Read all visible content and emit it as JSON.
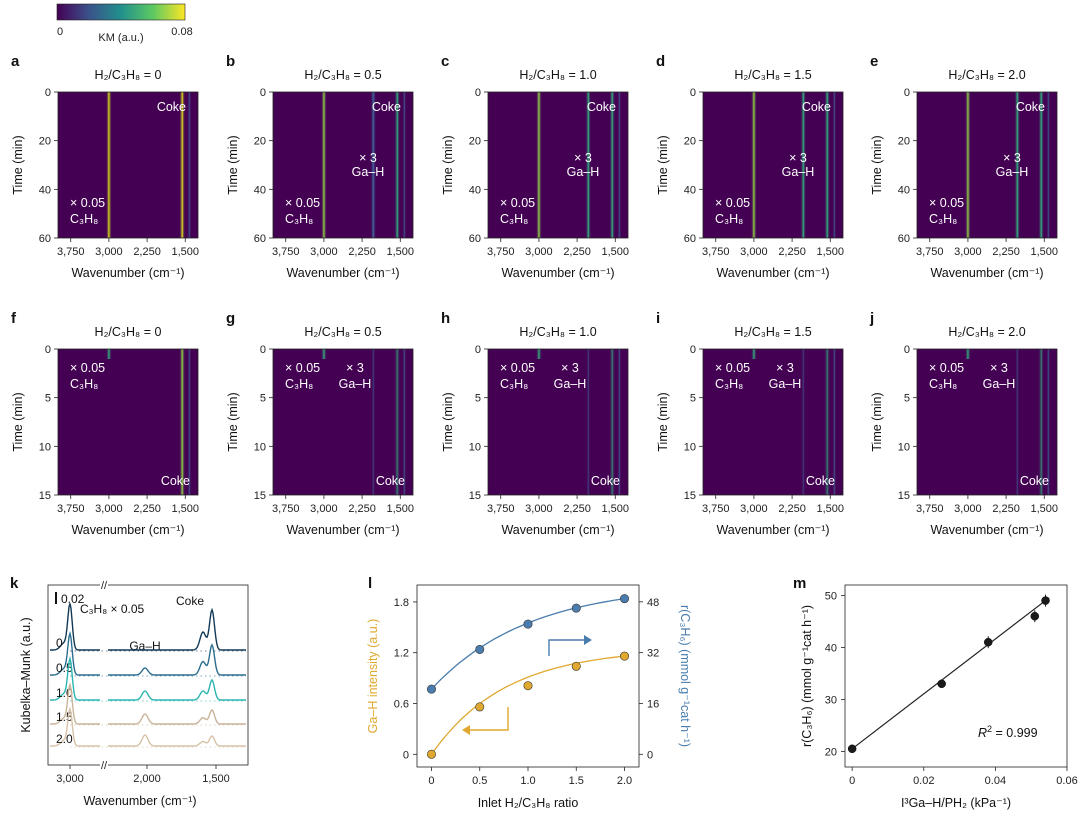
{
  "colorbar": {
    "label": "KM (a.u.)",
    "min": "0",
    "max": "0.08"
  },
  "rows": [
    {
      "time_max": 60,
      "time_ticks": [
        "0",
        "20",
        "40",
        "60"
      ],
      "panels": [
        {
          "letter": "a",
          "ratio": "0",
          "labels": {
            "coke": "Coke",
            "c3h8_mult": "× 0.05"
          }
        },
        {
          "letter": "b",
          "ratio": "0.5",
          "labels": {
            "coke": "Coke",
            "gah_mult": "× 3",
            "gah": "Ga–H",
            "c3h8_mult": "× 0.05"
          }
        },
        {
          "letter": "c",
          "ratio": "1.0",
          "labels": {
            "coke": "Coke",
            "gah_mult": "× 3",
            "gah": "Ga–H",
            "c3h8_mult": "× 0.05"
          }
        },
        {
          "letter": "d",
          "ratio": "1.5",
          "labels": {
            "coke": "Coke",
            "gah_mult": "× 3",
            "gah": "Ga–H",
            "c3h8_mult": "× 0.05"
          }
        },
        {
          "letter": "e",
          "ratio": "2.0",
          "labels": {
            "coke": "Coke",
            "gah_mult": "× 3",
            "gah": "Ga–H",
            "c3h8_mult": "× 0.05"
          }
        }
      ]
    },
    {
      "time_max": 15,
      "time_ticks": [
        "0",
        "5",
        "10",
        "15"
      ],
      "panels": [
        {
          "letter": "f",
          "ratio": "0",
          "labels": {
            "coke": "Coke",
            "c3h8_mult": "× 0.05"
          }
        },
        {
          "letter": "g",
          "ratio": "0.5",
          "labels": {
            "coke": "Coke",
            "gah_mult": "× 3",
            "gah": "Ga–H",
            "c3h8_mult": "× 0.05"
          }
        },
        {
          "letter": "h",
          "ratio": "1.0",
          "labels": {
            "coke": "Coke",
            "gah_mult": "× 3",
            "gah": "Ga–H",
            "c3h8_mult": "× 0.05"
          }
        },
        {
          "letter": "i",
          "ratio": "1.5",
          "labels": {
            "coke": "Coke",
            "gah_mult": "× 3",
            "gah": "Ga–H",
            "c3h8_mult": "× 0.05"
          }
        },
        {
          "letter": "j",
          "ratio": "2.0",
          "labels": {
            "coke": "Coke",
            "gah_mult": "× 3",
            "gah": "Ga–H",
            "c3h8_mult": "× 0.05"
          }
        }
      ]
    }
  ],
  "heatmap_common": {
    "title_prefix": "H₂/C₃H₈ = ",
    "xlabel": "Wavenumber (cm⁻¹)",
    "ylabel": "Time (min)",
    "x_ticks": [
      "3,750",
      "3,000",
      "2,250",
      "1,500"
    ]
  },
  "chart_data": [
    {
      "type": "heatmap",
      "panels": "a–j",
      "x_range_cm-1": [
        4000,
        1250
      ],
      "bands_cm-1": {
        "C3H8": 3000,
        "Ga-H": 2030,
        "coke": 1540
      },
      "color_range": [
        0,
        0.08
      ]
    },
    {
      "type": "line",
      "panel": "k",
      "letter": "k",
      "xlabel": "Wavenumber (cm⁻¹)",
      "ylabel": "Kubelka–Munk (a.u.)",
      "x_ticks": [
        "3,000",
        "2,000",
        "1,500"
      ],
      "scale_bar": "0.02",
      "annotations": {
        "c3h8": "C₃H₈ × 0.05",
        "coke": "Coke",
        "gah": "Ga–H"
      },
      "series": [
        {
          "name": "0",
          "color": "#123a57"
        },
        {
          "name": "0.5",
          "color": "#2b6e8f"
        },
        {
          "name": "1.0",
          "color": "#2bb5b0"
        },
        {
          "name": "1.5",
          "color": "#c9b49a"
        },
        {
          "name": "2.0",
          "color": "#d7c2a8"
        }
      ]
    },
    {
      "type": "scatter",
      "panel": "l",
      "letter": "l",
      "xlabel": "Inlet H₂/C₃H₈ ratio",
      "ylabel_left": "Ga–H intensity (a.u.)",
      "ylabel_right": "r(C₃H₆) (mmol g⁻¹cat h⁻¹)",
      "x": [
        0,
        0.5,
        1.0,
        1.5,
        2.0
      ],
      "x_ticks": [
        "0",
        "0.5",
        "1.0",
        "1.5",
        "2.0"
      ],
      "y_left_ticks": [
        "0",
        "0.6",
        "1.2",
        "1.8"
      ],
      "y_right_ticks": [
        "0",
        "16",
        "32",
        "48"
      ],
      "series": [
        {
          "name": "Ga–H intensity",
          "axis": "left",
          "ylim": [
            -0.15,
            2.0
          ],
          "values": [
            0,
            0.56,
            0.81,
            1.04,
            1.16
          ],
          "color": "#e0a82e"
        },
        {
          "name": "r(C3H6)",
          "axis": "right",
          "ylim": [
            -4,
            53.3
          ],
          "values": [
            20.5,
            33,
            41,
            46,
            49
          ],
          "color": "#4a7dad"
        }
      ]
    },
    {
      "type": "scatter",
      "panel": "m",
      "letter": "m",
      "xlabel": "I³Ga–H/PH₂ (kPa⁻¹)",
      "ylabel": "r(C₃H₆) (mmol g⁻¹cat h⁻¹)",
      "x": [
        0,
        0.025,
        0.038,
        0.051,
        0.054
      ],
      "y": [
        20.5,
        33,
        41,
        46,
        49
      ],
      "x_ticks": [
        "0",
        "0.02",
        "0.04",
        "0.06"
      ],
      "y_ticks": [
        "20",
        "30",
        "40",
        "50"
      ],
      "xlim": [
        -0.002,
        0.06
      ],
      "ylim": [
        17,
        52
      ],
      "fit": {
        "slope": 528,
        "intercept": 20.5
      },
      "r2": "= 0.999"
    }
  ]
}
